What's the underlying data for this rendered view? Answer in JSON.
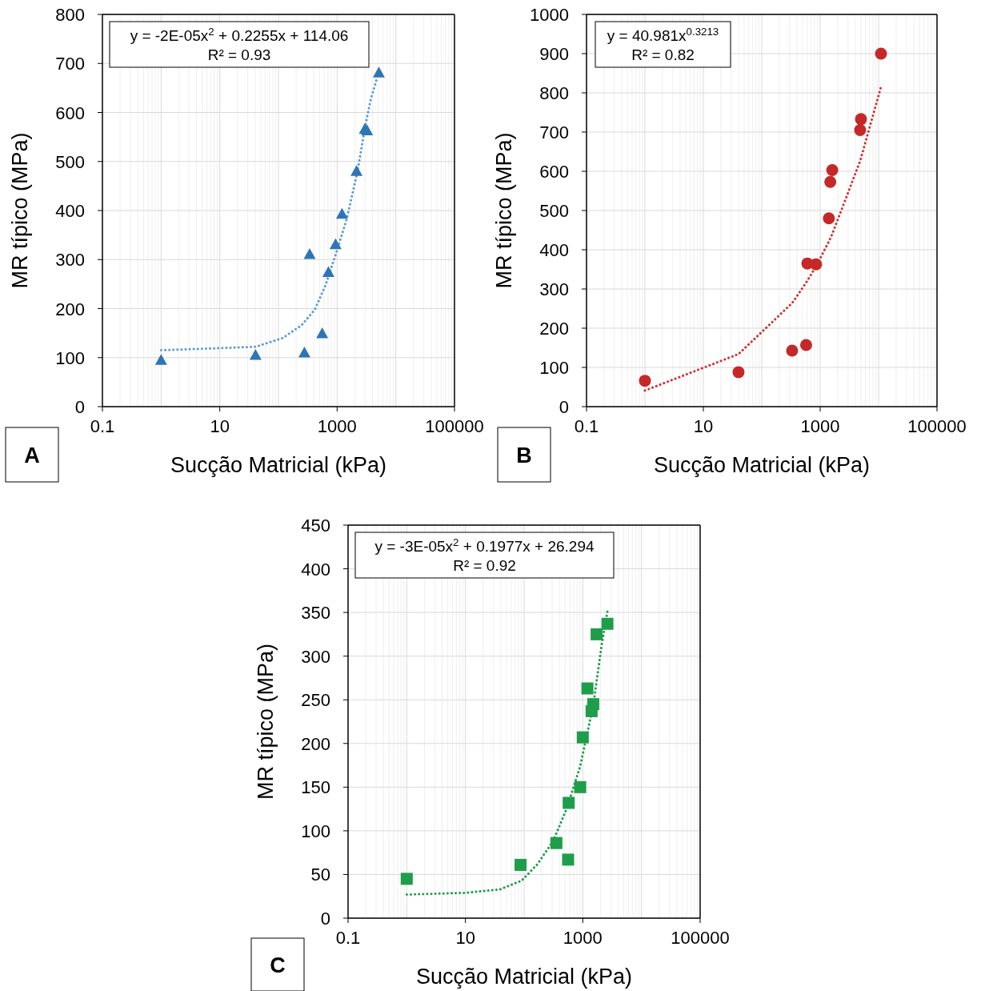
{
  "chart_data": [
    {
      "type": "scatter",
      "xlabel": "Sucção Matricial (kPa)",
      "ylabel": "MR típico (MPa)",
      "log": "x",
      "grid": true,
      "xlim": [
        0.1,
        100000
      ],
      "xticks": [
        0.1,
        10,
        1000,
        100000
      ],
      "ylim": [
        0,
        800
      ],
      "yticks": [
        0,
        100,
        200,
        300,
        400,
        500,
        600,
        700,
        800
      ],
      "annotations": [
        "y = -2E-05x$^{2}$ + 0.2255x + 114.06",
        "R² = 0.93",
        "A"
      ],
      "series": [
        {
          "marker": "triangle",
          "color": "#2e75b6",
          "x": [
            1,
            40.7,
            277,
            340,
            556,
            710,
            940,
            1210,
            2140,
            2960,
            3240,
            5140
          ],
          "values": [
            94,
            104,
            109,
            310,
            148,
            273,
            330,
            392,
            479,
            565,
            562,
            680
          ]
        },
        {
          "type": "line",
          "line_style": "dotted",
          "marker": "none",
          "color": "#5b9bd5",
          "x": [
            1,
            40.7,
            118.6,
            247,
            417,
            631,
            955,
            1462,
            2230,
            3020,
            3760,
            4680
          ],
          "values": [
            115,
            122,
            140,
            166,
            198,
            247,
            312,
            383,
            481,
            573,
            628,
            666
          ]
        }
      ]
    },
    {
      "type": "scatter",
      "xlabel": "Sucção Matricial (kPa)",
      "ylabel": "MR típico (MPa)",
      "log": "x",
      "grid": true,
      "xlim": [
        0.1,
        100000
      ],
      "xticks": [
        0.1,
        10,
        1000,
        100000
      ],
      "ylim": [
        0,
        1000
      ],
      "yticks": [
        0,
        100,
        200,
        300,
        400,
        500,
        600,
        700,
        800,
        900,
        1000
      ],
      "annotations": [
        "y = 40.981x$^{0.3213}$",
        "R² = 0.82",
        "B"
      ],
      "series": [
        {
          "marker": "circle",
          "color": "#c62828",
          "x": [
            1,
            40,
            331,
            575,
            603,
            851,
            1410,
            1490,
            1610,
            4830,
            5000,
            11000
          ],
          "values": [
            66,
            88,
            143,
            157,
            365,
            363,
            480,
            573,
            603,
            705,
            733,
            900
          ]
        },
        {
          "type": "line",
          "line_style": "dotted",
          "marker": "none",
          "color": "#d32f2f",
          "x": [
            1,
            40,
            331,
            575,
            851,
            1410,
            1610,
            4830,
            11000
          ],
          "values": [
            41,
            134,
            264,
            316,
            358,
            421,
            440,
            626,
            815
          ]
        }
      ]
    },
    {
      "type": "scatter",
      "xlabel": "Sucção Matricial (kPa)",
      "ylabel": "MR típico (MPa)",
      "log": "x",
      "grid": true,
      "xlim": [
        0.1,
        100000
      ],
      "xticks": [
        0.1,
        10,
        1000,
        100000
      ],
      "ylim": [
        0,
        450
      ],
      "yticks": [
        0,
        50,
        100,
        150,
        200,
        250,
        300,
        350,
        400,
        450
      ],
      "annotations": [
        "y = -3E-05x$^{2}$ + 0.1977x + 26.294",
        "R² = 0.92",
        "C"
      ],
      "series": [
        {
          "marker": "square",
          "color": "#1e9e4a",
          "x": [
            1,
            87,
            355,
            562,
            575,
            904,
            1000,
            1413,
            1510,
            1200,
            1720,
            2630
          ],
          "values": [
            45,
            61,
            86,
            67,
            132,
            150,
            207,
            237,
            245,
            263,
            325,
            337
          ]
        },
        {
          "type": "line",
          "line_style": "dotted",
          "marker": "none",
          "color": "#1e9e4a",
          "x": [
            1,
            10,
            39,
            91,
            170,
            316,
            537,
            904,
            1520,
            2090,
            2630
          ],
          "values": [
            27,
            29,
            33,
            43,
            62,
            89,
            126,
            174,
            245,
            312,
            351
          ]
        }
      ]
    }
  ]
}
